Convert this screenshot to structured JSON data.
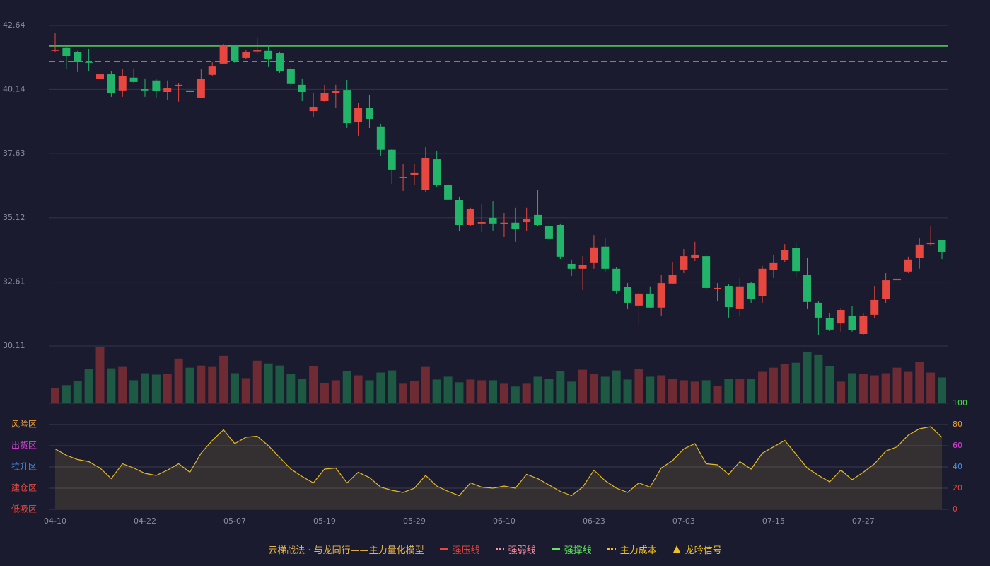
{
  "chart_data": {
    "type": "candlestick",
    "categories": [
      "04-10",
      null,
      null,
      null,
      null,
      null,
      null,
      null,
      "04-22",
      null,
      null,
      null,
      null,
      null,
      null,
      null,
      "05-07",
      null,
      null,
      null,
      null,
      null,
      null,
      null,
      "05-19",
      null,
      null,
      null,
      null,
      null,
      null,
      null,
      "05-29",
      null,
      null,
      null,
      null,
      null,
      null,
      null,
      "06-10",
      null,
      null,
      null,
      null,
      null,
      null,
      null,
      "06-23",
      null,
      null,
      null,
      null,
      null,
      null,
      null,
      "07-03",
      null,
      null,
      null,
      null,
      null,
      null,
      null,
      "07-15",
      null,
      null,
      null,
      null,
      null,
      null,
      null,
      "07-27",
      null,
      null,
      null,
      null,
      null,
      null,
      null
    ],
    "open": [
      41.65,
      41.76,
      41.59,
      41.23,
      40.54,
      40.73,
      40.1,
      40.6,
      40.15,
      40.49,
      40.04,
      40.29,
      40.1,
      39.82,
      40.71,
      41.15,
      41.87,
      41.37,
      41.65,
      41.65,
      41.56,
      40.93,
      40.32,
      39.29,
      39.68,
      40.01,
      40.12,
      38.85,
      39.41,
      38.69,
      37.78,
      36.67,
      36.78,
      36.22,
      37.41,
      36.39,
      35.81,
      34.84,
      34.9,
      35.12,
      34.87,
      34.93,
      34.95,
      35.23,
      34.81,
      34.84,
      33.32,
      33.13,
      33.35,
      33.99,
      33.13,
      32.41,
      31.69,
      32.16,
      31.61,
      32.55,
      33.1,
      33.54,
      33.62,
      32.35,
      32.46,
      31.55,
      32.57,
      32.05,
      33.07,
      33.46,
      33.93,
      32.88,
      31.8,
      31.19,
      30.99,
      31.3,
      30.58,
      31.33,
      31.94,
      32.68,
      33.02,
      33.54,
      34.09,
      34.26
    ],
    "close": [
      41.7,
      41.45,
      41.23,
      41.18,
      40.73,
      39.99,
      40.65,
      40.43,
      40.1,
      40.07,
      40.18,
      40.32,
      40.04,
      40.54,
      41.06,
      41.87,
      41.26,
      41.59,
      41.67,
      41.31,
      40.87,
      40.35,
      40.04,
      39.46,
      40.01,
      40.07,
      38.82,
      39.41,
      38.99,
      37.78,
      37.0,
      36.72,
      36.89,
      37.44,
      36.39,
      35.84,
      34.84,
      35.45,
      34.95,
      34.9,
      34.93,
      34.7,
      35.06,
      34.84,
      34.29,
      33.6,
      33.13,
      33.29,
      33.96,
      33.13,
      32.27,
      31.8,
      32.16,
      31.61,
      32.57,
      32.88,
      33.62,
      33.68,
      32.38,
      32.38,
      31.63,
      32.44,
      31.94,
      33.13,
      33.35,
      33.85,
      33.04,
      31.83,
      31.22,
      30.75,
      31.52,
      30.72,
      31.3,
      31.91,
      32.68,
      32.74,
      33.49,
      34.07,
      34.15,
      33.79
    ],
    "high": [
      42.34,
      41.81,
      41.65,
      41.73,
      40.98,
      40.87,
      40.93,
      40.96,
      40.57,
      40.54,
      40.49,
      40.4,
      40.6,
      40.93,
      41.2,
      41.92,
      41.89,
      41.67,
      42.14,
      41.84,
      41.62,
      41.01,
      40.57,
      39.99,
      40.32,
      40.32,
      40.51,
      39.6,
      39.93,
      38.8,
      37.83,
      37.22,
      37.22,
      37.88,
      37.72,
      36.5,
      35.95,
      35.51,
      35.67,
      35.78,
      35.31,
      35.51,
      35.51,
      36.2,
      34.98,
      34.9,
      33.49,
      33.62,
      34.45,
      34.31,
      33.18,
      32.57,
      32.24,
      32.44,
      32.88,
      33.4,
      33.9,
      34.18,
      33.65,
      32.57,
      32.52,
      32.77,
      32.63,
      33.24,
      33.68,
      34.09,
      34.15,
      33.57,
      31.86,
      31.39,
      31.58,
      31.66,
      31.39,
      32.46,
      32.96,
      33.54,
      33.6,
      34.31,
      34.79,
      34.26
    ],
    "low": [
      41.62,
      40.93,
      40.82,
      40.85,
      39.55,
      39.85,
      39.85,
      40.4,
      39.85,
      39.82,
      39.71,
      39.66,
      39.93,
      39.8,
      40.65,
      41.12,
      41.18,
      41.34,
      41.51,
      41.04,
      40.79,
      40.29,
      39.68,
      39.05,
      39.66,
      39.43,
      38.63,
      38.33,
      38.63,
      37.55,
      36.45,
      36.17,
      36.39,
      36.11,
      36.31,
      35.81,
      34.59,
      34.79,
      34.56,
      34.62,
      34.37,
      34.18,
      34.59,
      34.79,
      34.2,
      33.51,
      32.85,
      32.3,
      33.13,
      33.02,
      32.16,
      31.55,
      30.94,
      31.58,
      31.27,
      32.52,
      32.96,
      33.43,
      32.33,
      31.88,
      31.22,
      31.27,
      31.8,
      31.8,
      32.77,
      33.4,
      32.79,
      31.55,
      30.53,
      30.69,
      30.67,
      30.67,
      30.55,
      31.19,
      31.8,
      32.49,
      32.96,
      33.13,
      34.01,
      33.51
    ],
    "up_color": "#e8473f",
    "down_color": "#22b469",
    "ylim": [
      30.11,
      42.64
    ],
    "yticks": [
      30.11,
      32.61,
      35.12,
      37.63,
      40.14,
      42.64
    ],
    "volume": {
      "values": [
        22,
        26,
        32,
        49,
        81,
        50,
        52,
        33,
        43,
        41,
        42,
        64,
        51,
        54,
        52,
        68,
        43,
        36,
        61,
        57,
        54,
        42,
        35,
        53,
        29,
        33,
        46,
        40,
        33,
        44,
        47,
        28,
        32,
        52,
        34,
        38,
        30,
        34,
        33,
        33,
        28,
        24,
        28,
        38,
        35,
        46,
        31,
        48,
        42,
        38,
        47,
        34,
        49,
        38,
        40,
        35,
        33,
        31,
        33,
        25,
        35,
        35,
        35,
        45,
        51,
        56,
        58,
        74,
        69,
        53,
        31,
        43,
        42,
        40,
        43,
        51,
        45,
        59,
        44,
        37
      ],
      "up_color": "#6e2b34",
      "down_color": "#1e5a43"
    },
    "oscillator": {
      "values": [
        57,
        51,
        47,
        45,
        39,
        29,
        43,
        39,
        34,
        32,
        37,
        43,
        35,
        53,
        65,
        75,
        62,
        68,
        69,
        60,
        49,
        38,
        31,
        25,
        38,
        39,
        25,
        35,
        30,
        21,
        18,
        16,
        20,
        32,
        22,
        17,
        13,
        25,
        21,
        20,
        22,
        20,
        33,
        29,
        23,
        17,
        13,
        21,
        37,
        27,
        20,
        16,
        25,
        21,
        39,
        46,
        57,
        62,
        43,
        42,
        33,
        45,
        38,
        53,
        59,
        65,
        52,
        39,
        32,
        26,
        37,
        28,
        35,
        43,
        55,
        59,
        70,
        76,
        78,
        68
      ],
      "color": "#e6bc22",
      "ylim": [
        0,
        100
      ],
      "yticks": [
        0,
        20,
        40,
        60,
        80,
        100
      ],
      "ytick_colors": [
        "#e8473f",
        "#e8473f",
        "#4a8fe8",
        "#e040e0",
        "#f0a030",
        "#3ee63e"
      ],
      "zones": [
        {
          "value": 80,
          "label": "风险区",
          "color": "#f0a030"
        },
        {
          "value": 60,
          "label": "出货区",
          "color": "#e040e0"
        },
        {
          "value": 40,
          "label": "拉升区",
          "color": "#4a8fe8"
        },
        {
          "value": 20,
          "label": "建仓区",
          "color": "#e8473f"
        },
        {
          "value": 0,
          "label": "低吸区",
          "color": "#e8473f"
        }
      ]
    },
    "legend_title": "云梯战法 · 与龙同行——主力量化模型",
    "legend": [
      {
        "name": "强压线",
        "color": "#e8473f",
        "style": "solid"
      },
      {
        "name": "强弱线",
        "color": "#ff8fa0",
        "style": "dashed"
      },
      {
        "name": "强撑线",
        "color": "#5ee65e",
        "style": "solid",
        "value": 41.84
      },
      {
        "name": "主力成本",
        "color": "#f0c020",
        "style": "dashed",
        "value": 41.23
      },
      {
        "name": "龙吟信号",
        "color": "#f0c020",
        "style": "triangle"
      }
    ]
  }
}
